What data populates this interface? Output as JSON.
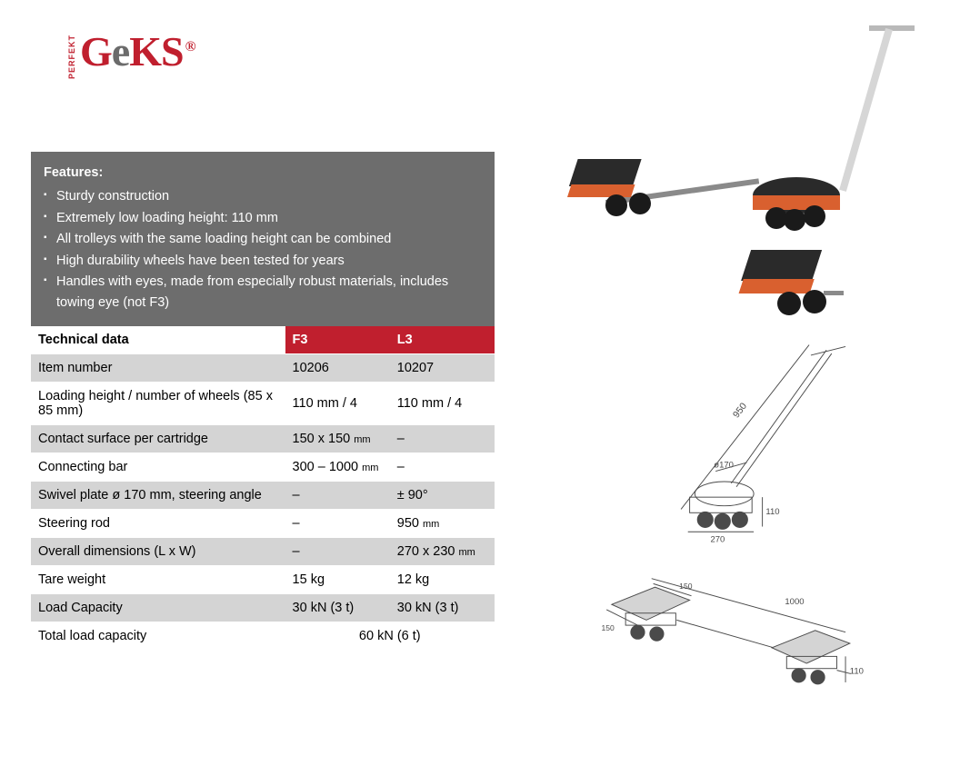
{
  "brand": {
    "name_red1": "G",
    "name_dark": "e",
    "name_red2": "KS",
    "reg": "®",
    "subline": "PERFEKT",
    "red": "#c01f2e",
    "grey": "#6b6b6b"
  },
  "features": {
    "title": "Features:",
    "items": [
      "Sturdy construction",
      "Extremely low loading height: 110 mm",
      "All trolleys with the same loading height can be combined",
      "High durability wheels have been tested for years",
      "Handles with eyes, made from especially robust materials, includes towing eye (not F3)"
    ],
    "bg": "#6d6d6d",
    "fg": "#ffffff"
  },
  "table": {
    "header_label": "Technical data",
    "col1": "F3",
    "col2": "L3",
    "header_bg": "#c01f2e",
    "header_fg": "#ffffff",
    "row_shade_bg": "#d4d4d4",
    "row_noshade_bg": "#ffffff",
    "rows": [
      {
        "shade": true,
        "label": "Item number",
        "f3": "10206",
        "l3": "10207"
      },
      {
        "shade": false,
        "label": "Loading height / number of wheels (85 x 85 mm)",
        "f3": "110 mm / 4",
        "l3": "110 mm / 4"
      },
      {
        "shade": true,
        "label": "Contact surface per cartridge",
        "f3": "150 x 150 mm",
        "l3": "–"
      },
      {
        "shade": false,
        "label": "Connecting bar",
        "f3": "300 – 1000 mm",
        "l3": "–"
      },
      {
        "shade": true,
        "label": "Swivel plate ø 170 mm, steering angle",
        "f3": "–",
        "l3": "± 90°"
      },
      {
        "shade": false,
        "label": "Steering rod",
        "f3": "–",
        "l3": "950 mm"
      },
      {
        "shade": true,
        "label": "Overall dimensions (L x W)",
        "f3": "–",
        "l3": "270 x 230 mm"
      },
      {
        "shade": false,
        "label": "Tare weight",
        "f3": "15 kg",
        "l3": "12 kg"
      },
      {
        "shade": true,
        "label": "Load Capacity",
        "f3": "30 kN (3 t)",
        "l3": "30 kN (3 t)"
      },
      {
        "shade": false,
        "label": "Total load capacity",
        "merged": "60 kN (6 t)"
      }
    ]
  },
  "photo": {
    "trolley_body_color": "#d9602f",
    "trolley_pad_color": "#2a2a2a",
    "wheel_color": "#1a1a1a",
    "bar_color": "#8a8a8a",
    "handle_color": "#c9c9c9"
  },
  "drawings": {
    "line_color": "#4a4a4a",
    "label_950": "950",
    "label_d170": "ø170",
    "label_270": "270",
    "label_110_a": "110",
    "label_1000": "1000",
    "label_150_a": "150",
    "label_150_b": "150",
    "label_110_b": "110"
  }
}
